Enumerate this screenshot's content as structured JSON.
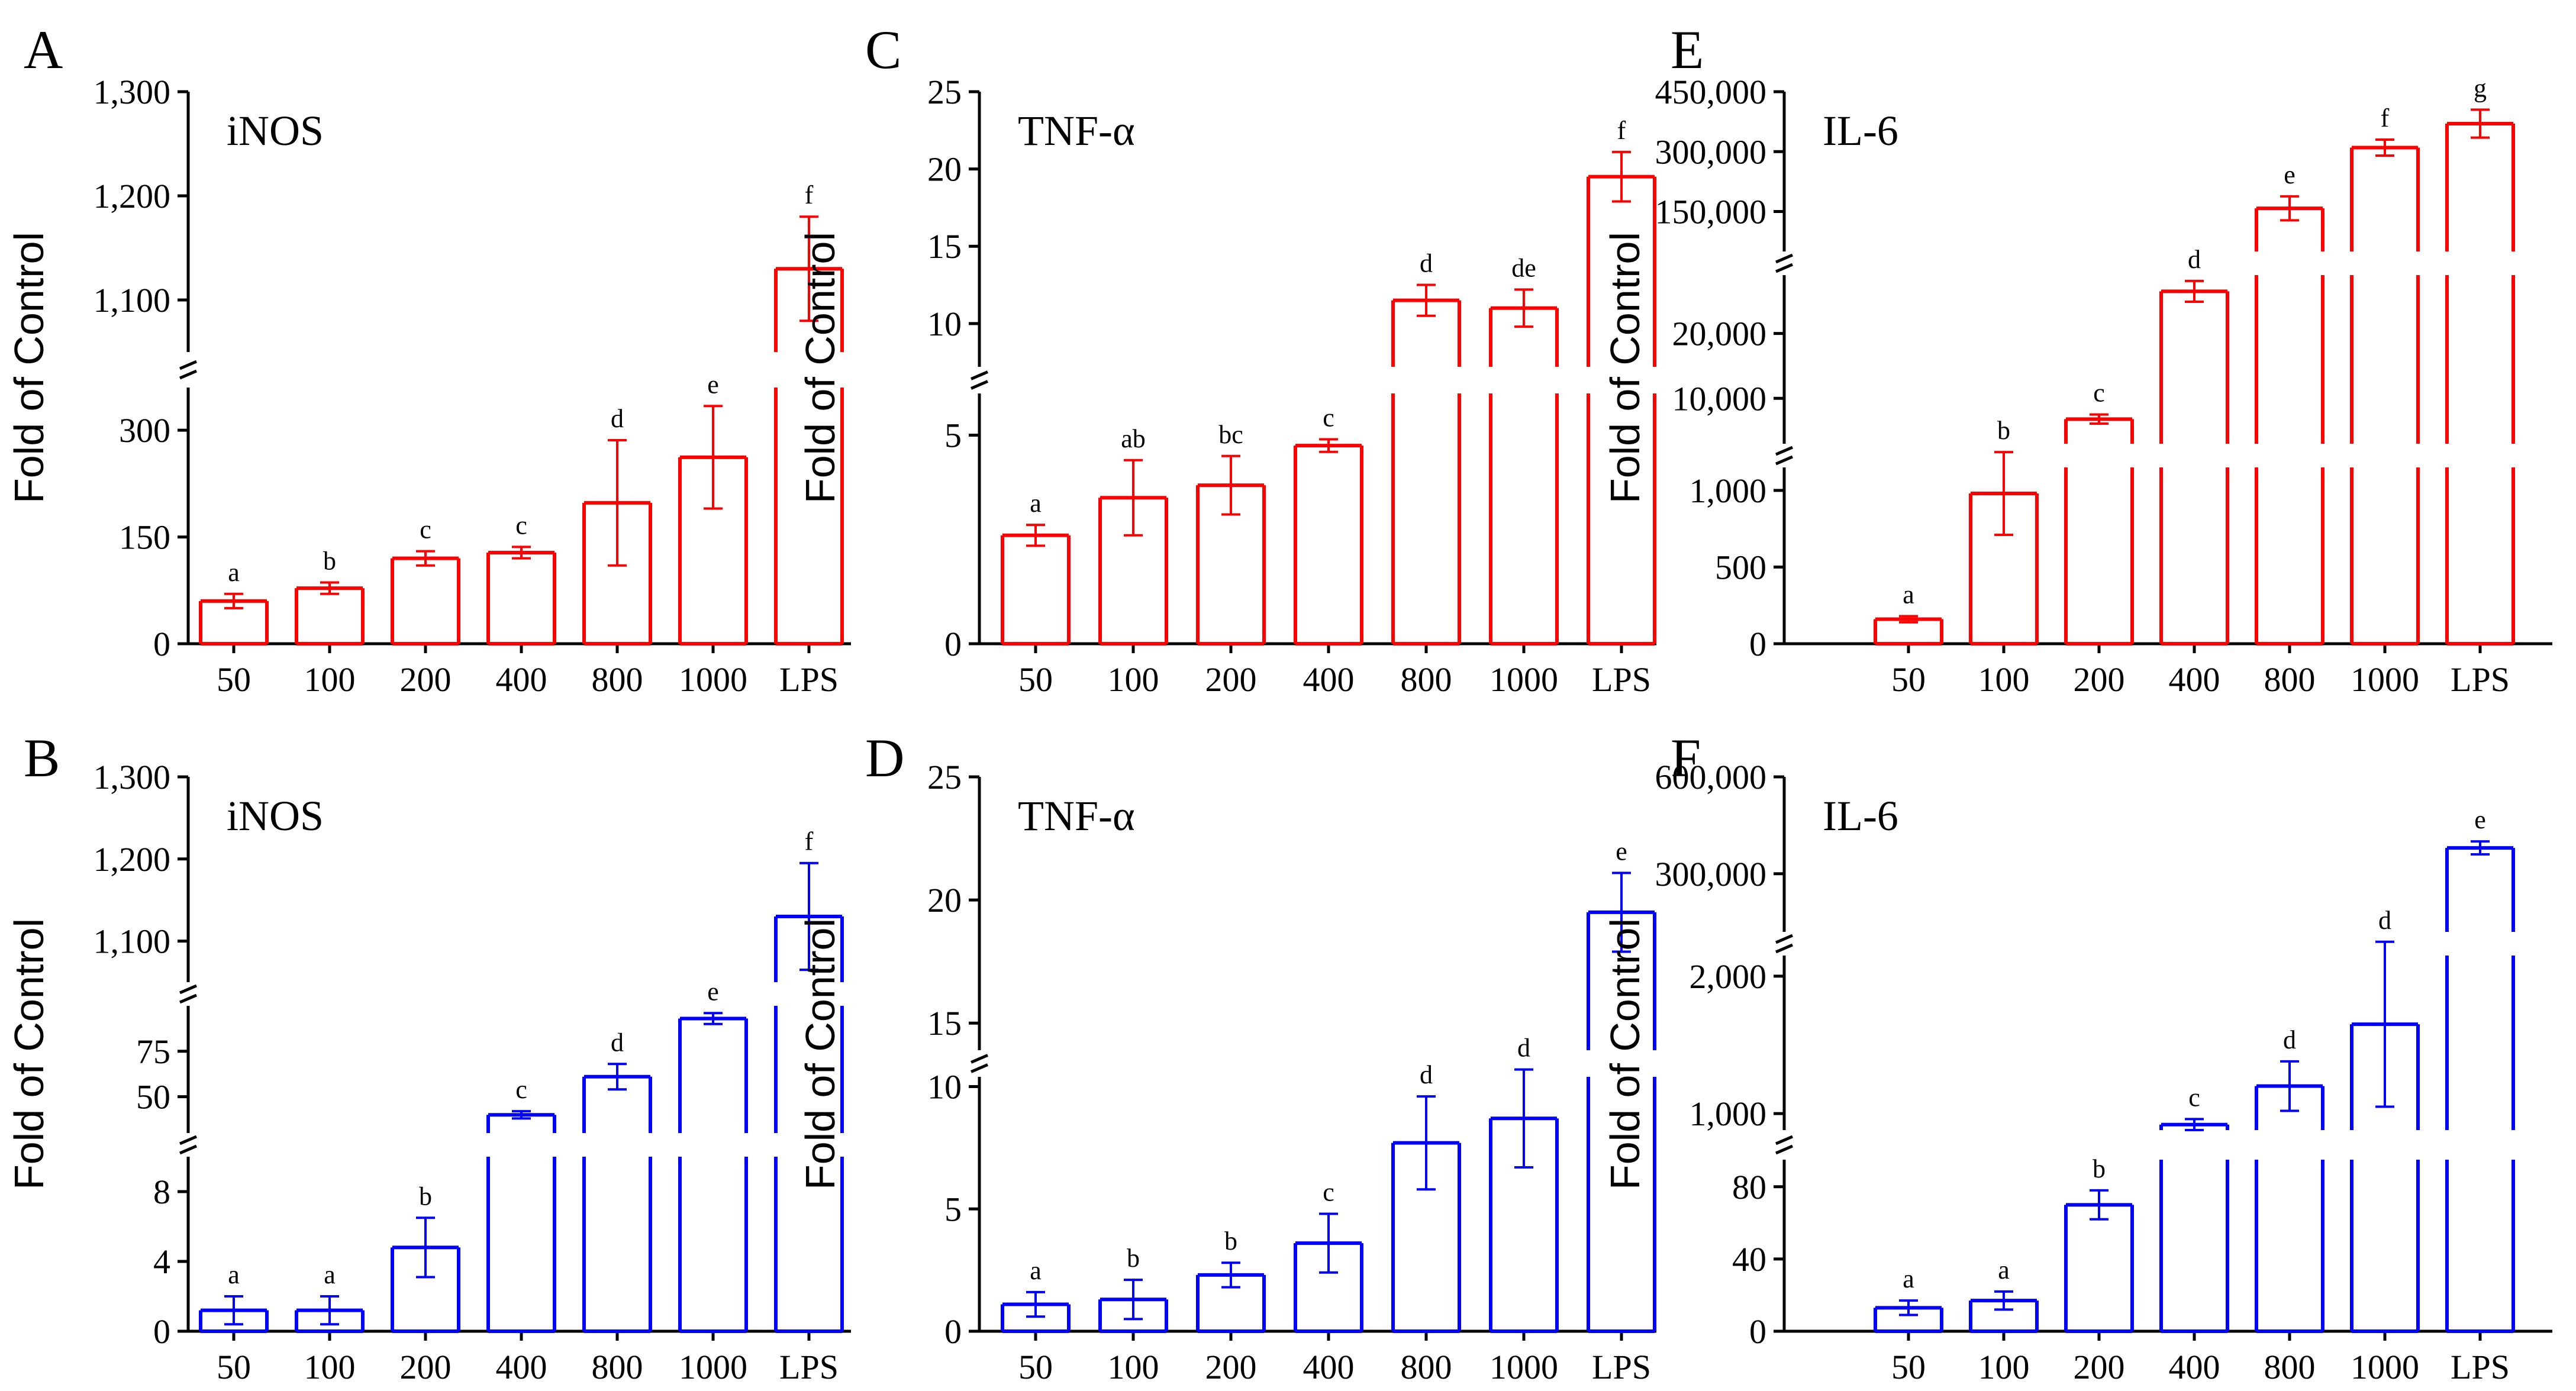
{
  "figure": {
    "ylabel": "Fold of Control",
    "panels": [
      "A",
      "B",
      "C",
      "D",
      "E",
      "F"
    ]
  },
  "chart_data": [
    {
      "panel": "A",
      "type": "bar",
      "title": "iNOS",
      "color": "#ff0000",
      "xlabel": "",
      "ylabel": "Fold of Control",
      "categories": [
        "50",
        "100",
        "200",
        "400",
        "800",
        "1000",
        "LPS"
      ],
      "values": [
        60,
        78,
        120,
        128,
        198,
        262,
        1130
      ],
      "errors": [
        10,
        8,
        10,
        8,
        88,
        72,
        50
      ],
      "letters": [
        "a",
        "b",
        "c",
        "c",
        "d",
        "e",
        "f"
      ],
      "break": "between 300 and 1,100",
      "segments": [
        {
          "range": [
            0,
            360
          ],
          "ticks": [
            0,
            150,
            300
          ],
          "tick_labels": [
            "0",
            "150",
            "300"
          ]
        },
        {
          "range": [
            1050,
            1300
          ],
          "ticks": [
            1100,
            1200,
            1300
          ],
          "tick_labels": [
            "1,100",
            "1,200",
            "1,300"
          ]
        }
      ]
    },
    {
      "panel": "B",
      "type": "bar",
      "title": "iNOS",
      "color": "#0000ff",
      "xlabel": "",
      "ylabel": "Fold of Control",
      "categories": [
        "50",
        "100",
        "200",
        "400",
        "800",
        "1000",
        "LPS"
      ],
      "values": [
        1.2,
        1.2,
        4.8,
        40,
        61,
        93,
        1130
      ],
      "errors": [
        0.8,
        0.8,
        1.7,
        2,
        7,
        3,
        65
      ],
      "letters": [
        "a",
        "a",
        "b",
        "c",
        "d",
        "e",
        "f"
      ],
      "break": "two breaks",
      "segments": [
        {
          "range": [
            0,
            10
          ],
          "ticks": [
            0,
            4,
            8
          ],
          "tick_labels": [
            "0",
            "4",
            "8"
          ]
        },
        {
          "range": [
            30,
            100
          ],
          "ticks": [
            50,
            75
          ],
          "tick_labels": [
            "50",
            "75"
          ]
        },
        {
          "range": [
            1050,
            1300
          ],
          "ticks": [
            1100,
            1200,
            1300
          ],
          "tick_labels": [
            "1,100",
            "1,200",
            "1,300"
          ]
        }
      ]
    },
    {
      "panel": "C",
      "type": "bar",
      "title": "TNF-α",
      "color": "#ff0000",
      "xlabel": "",
      "ylabel": "Fold of Control",
      "categories": [
        "50",
        "100",
        "200",
        "400",
        "800",
        "1000",
        "LPS"
      ],
      "values": [
        2.6,
        3.5,
        3.8,
        4.75,
        11.5,
        11,
        19.5
      ],
      "errors": [
        0.25,
        0.9,
        0.7,
        0.15,
        1.0,
        1.2,
        1.6
      ],
      "letters": [
        "a",
        "ab",
        "bc",
        "c",
        "d",
        "de",
        "f"
      ],
      "break": "between 5 and 10",
      "segments": [
        {
          "range": [
            0,
            6
          ],
          "ticks": [
            0,
            5
          ],
          "tick_labels": [
            "0",
            "5"
          ]
        },
        {
          "range": [
            7.2,
            25
          ],
          "ticks": [
            10,
            15,
            20,
            25
          ],
          "tick_labels": [
            "10",
            "15",
            "20",
            "25"
          ]
        }
      ]
    },
    {
      "panel": "D",
      "type": "bar",
      "title": "TNF-α",
      "color": "#0000ff",
      "xlabel": "",
      "ylabel": "Fold of Control",
      "categories": [
        "50",
        "100",
        "200",
        "400",
        "800",
        "1000",
        "LPS"
      ],
      "values": [
        1.1,
        1.3,
        2.3,
        3.6,
        7.7,
        8.7,
        19.5
      ],
      "errors": [
        0.5,
        0.8,
        0.5,
        1.2,
        1.9,
        2.0,
        1.6
      ],
      "letters": [
        "a",
        "b",
        "b",
        "c",
        "d",
        "d",
        "e"
      ],
      "break": "between 10 and 15",
      "segments": [
        {
          "range": [
            0,
            10.4
          ],
          "ticks": [
            0,
            5,
            10
          ],
          "tick_labels": [
            "0",
            "5",
            "10"
          ]
        },
        {
          "range": [
            13.9,
            25
          ],
          "ticks": [
            15,
            20,
            25
          ],
          "tick_labels": [
            "15",
            "20",
            "25"
          ]
        }
      ]
    },
    {
      "panel": "E",
      "type": "bar",
      "title": "IL-6",
      "color": "#ff0000",
      "xlabel": "",
      "ylabel": "Fold of Control",
      "categories": [
        "50",
        "100",
        "200",
        "400",
        "800",
        "1000",
        "LPS"
      ],
      "values": [
        160,
        980,
        6800,
        26500,
        158000,
        310000,
        370000
      ],
      "errors": [
        20,
        270,
        700,
        1600,
        30000,
        20000,
        35000
      ],
      "letters": [
        "a",
        "b",
        "c",
        "d",
        "e",
        "f",
        "g"
      ],
      "break": "two breaks",
      "segments": [
        {
          "range": [
            0,
            1150
          ],
          "ticks": [
            0,
            500,
            1000
          ],
          "tick_labels": [
            "0",
            "500",
            "1,000"
          ]
        },
        {
          "range": [
            3000,
            29000
          ],
          "ticks": [
            10000,
            20000
          ],
          "tick_labels": [
            "10,000",
            "20,000"
          ]
        },
        {
          "range": [
            50000,
            450000
          ],
          "ticks": [
            150000,
            300000,
            450000
          ],
          "tick_labels": [
            "150,000",
            "300,000",
            "450,000"
          ]
        }
      ]
    },
    {
      "panel": "F",
      "type": "bar",
      "title": "IL-6",
      "color": "#0000ff",
      "xlabel": "",
      "ylabel": "Fold of Control",
      "categories": [
        "50",
        "100",
        "200",
        "400",
        "800",
        "1000",
        "LPS"
      ],
      "values": [
        13,
        17,
        70,
        920,
        1200,
        1650,
        380000
      ],
      "errors": [
        4,
        5,
        8,
        40,
        180,
        600,
        20000
      ],
      "letters": [
        "a",
        "a",
        "b",
        "c",
        "d",
        "d",
        "e"
      ],
      "break": "two breaks",
      "segments": [
        {
          "range": [
            0,
            95
          ],
          "ticks": [
            0,
            40,
            80
          ],
          "tick_labels": [
            "0",
            "40",
            "80"
          ]
        },
        {
          "range": [
            880,
            2150
          ],
          "ticks": [
            1000,
            2000
          ],
          "tick_labels": [
            "1,000",
            "2,000"
          ]
        },
        {
          "range": [
            120000,
            600000
          ],
          "ticks": [
            300000,
            600000
          ],
          "tick_labels": [
            "300,000",
            "600,000"
          ]
        }
      ]
    }
  ]
}
